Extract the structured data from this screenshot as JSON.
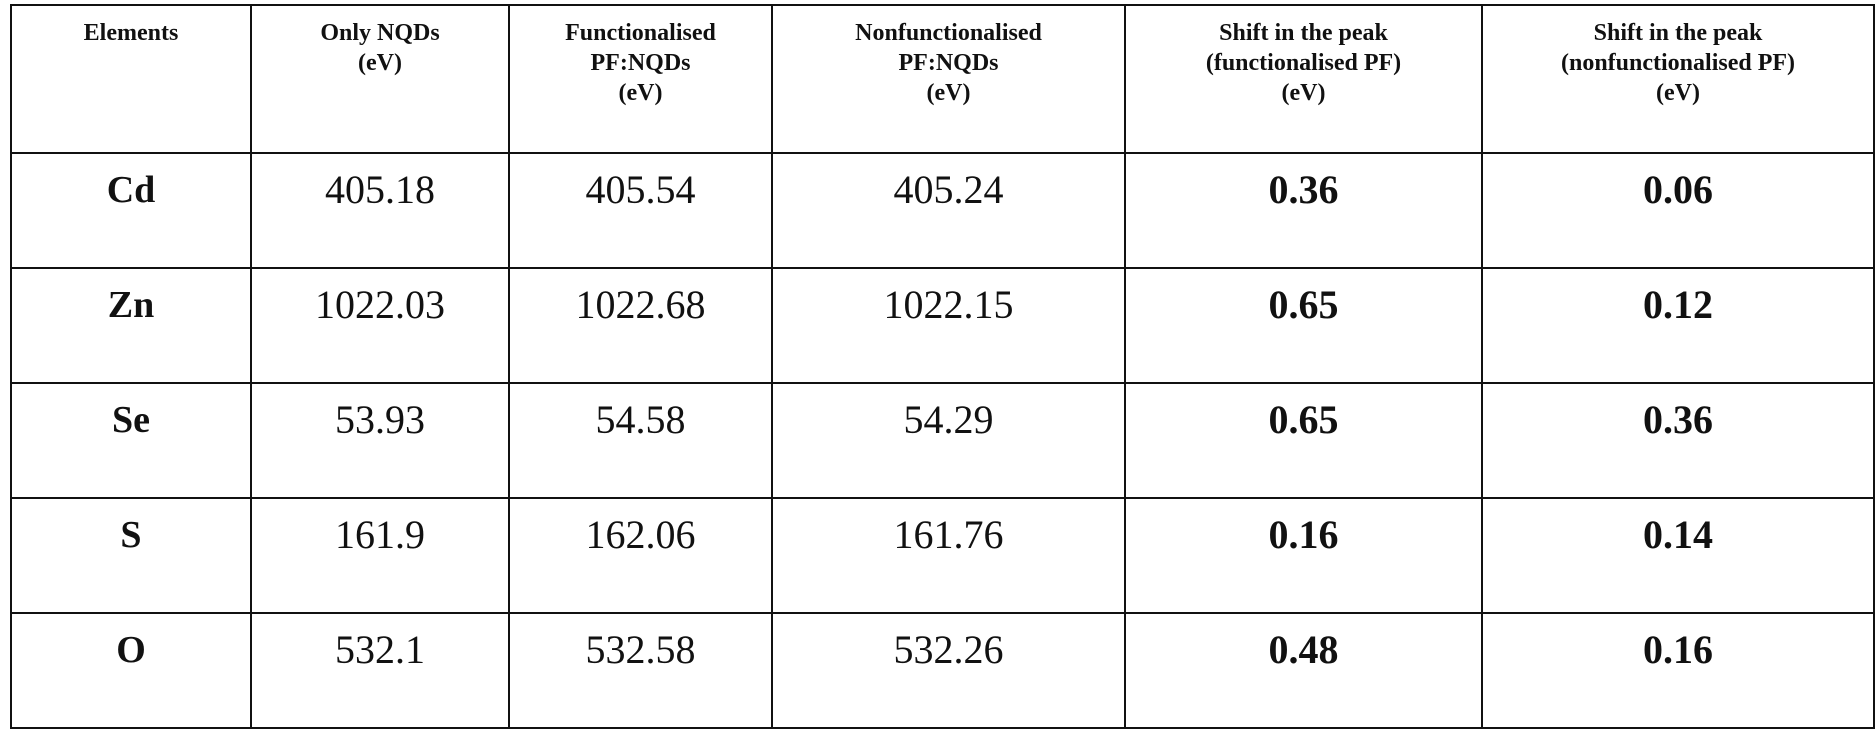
{
  "table": {
    "headers": [
      [
        "Elements"
      ],
      [
        "Only NQDs",
        "(eV)"
      ],
      [
        "Functionalised",
        "PF:NQDs",
        "(eV)"
      ],
      [
        "Nonfunctionalised",
        "PF:NQDs",
        "(eV)"
      ],
      [
        "Shift in the peak",
        "(functionalised PF)",
        "(eV)"
      ],
      [
        "Shift in the peak",
        "(nonfunctionalised PF)",
        "(eV)"
      ]
    ],
    "rows": [
      [
        "Cd",
        "405.18",
        "405.54",
        "405.24",
        "0.36",
        "0.06"
      ],
      [
        "Zn",
        "1022.03",
        "1022.68",
        "1022.15",
        "0.65",
        "0.12"
      ],
      [
        "Se",
        "53.93",
        "54.58",
        "54.29",
        "0.65",
        "0.36"
      ],
      [
        "S",
        "161.9",
        "162.06",
        "161.76",
        "0.16",
        "0.14"
      ],
      [
        "O",
        "532.1",
        "532.58",
        "532.26",
        "0.48",
        "0.16"
      ]
    ]
  }
}
